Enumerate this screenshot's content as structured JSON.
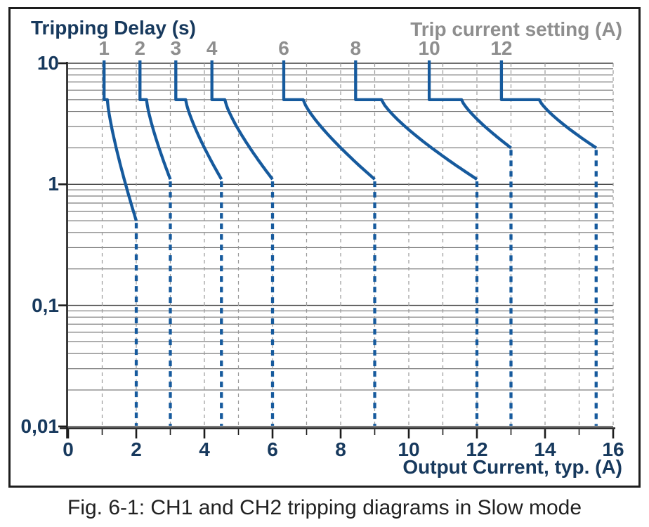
{
  "figure": {
    "caption": "Fig. 6-1: CH1 and CH2 tripping diagrams in Slow mode"
  },
  "chart_data": {
    "type": "line",
    "title_left": "Tripping Delay (s)",
    "title_top_right": "Trip current setting (A)",
    "x_axis": {
      "label": "Output Current, typ. (A)",
      "min": 0,
      "max": 16,
      "major_tick_labels": [
        "0",
        "2",
        "4",
        "6",
        "8",
        "10",
        "12",
        "14",
        "16"
      ],
      "major_tick_values": [
        0,
        2,
        4,
        6,
        8,
        10,
        12,
        14,
        16
      ],
      "minor_tick_values": [
        1,
        3,
        5,
        7,
        9,
        11,
        13,
        15
      ],
      "grid_dashed_at": [
        1,
        2,
        3,
        4,
        5,
        6,
        7,
        8,
        9,
        10,
        11,
        12,
        13,
        14,
        15,
        16
      ]
    },
    "y_axis": {
      "scale": "log",
      "min": 0.01,
      "max": 10,
      "tick_labels": [
        "10",
        "1",
        "0,1",
        "0,01"
      ],
      "tick_values": [
        10,
        1,
        0.1,
        0.01
      ],
      "minor_grid": "log decades 2-9"
    },
    "top_axis": {
      "labels": [
        "1",
        "2",
        "3",
        "4",
        "6",
        "8",
        "10",
        "12"
      ]
    },
    "series_description": "Each curve: solid vertical at ~1.05x trip setting from 10 s down to 5 s, horizontal step to ~1.15x setting at 5 s, inverse-time curve down to end point, then dashed vertical down to 0.01 s.",
    "series": [
      {
        "setting": 1,
        "label": "1",
        "vertical_x": 1.055,
        "step_delay": 5,
        "step_end_x": 1.15,
        "curve_end_x": 2.0,
        "curve_end_delay": 0.5,
        "dashed_to_delay": 0.01
      },
      {
        "setting": 2,
        "label": "2",
        "vertical_x": 2.11,
        "step_delay": 5,
        "step_end_x": 2.3,
        "curve_end_x": 3.0,
        "curve_end_delay": 1.1,
        "dashed_to_delay": 0.01
      },
      {
        "setting": 3,
        "label": "3",
        "vertical_x": 3.16,
        "step_delay": 5,
        "step_end_x": 3.45,
        "curve_end_x": 4.5,
        "curve_end_delay": 1.1,
        "dashed_to_delay": 0.01
      },
      {
        "setting": 4,
        "label": "4",
        "vertical_x": 4.22,
        "step_delay": 5,
        "step_end_x": 4.6,
        "curve_end_x": 6.0,
        "curve_end_delay": 1.1,
        "dashed_to_delay": 0.01
      },
      {
        "setting": 6,
        "label": "6",
        "vertical_x": 6.33,
        "step_delay": 5,
        "step_end_x": 6.9,
        "curve_end_x": 9.0,
        "curve_end_delay": 1.1,
        "dashed_to_delay": 0.01
      },
      {
        "setting": 8,
        "label": "8",
        "vertical_x": 8.44,
        "step_delay": 5,
        "step_end_x": 9.2,
        "curve_end_x": 12.0,
        "curve_end_delay": 1.1,
        "dashed_to_delay": 0.01
      },
      {
        "setting": 10,
        "label": "10",
        "vertical_x": 10.6,
        "step_delay": 5,
        "step_end_x": 11.55,
        "curve_end_x": 13.0,
        "curve_end_delay": 2.0,
        "dashed_to_delay": 0.01
      },
      {
        "setting": 12,
        "label": "12",
        "vertical_x": 12.72,
        "step_delay": 5,
        "step_end_x": 13.83,
        "curve_end_x": 15.5,
        "curve_end_delay": 2.0,
        "dashed_to_delay": 0.01
      }
    ],
    "colors": {
      "curve_blue": "#165a9d",
      "text_navy": "#17395d",
      "text_gray": "#8e8e8e",
      "grid_horizontal": "#5c5c5c",
      "grid_decade": "#3f3f3f",
      "grid_vertical_dashed": "#9a9a9a",
      "axis": "#1c1c1c",
      "border": "#1d1d1d"
    },
    "layout_hints": {
      "grid": "on",
      "legend": "none"
    }
  }
}
